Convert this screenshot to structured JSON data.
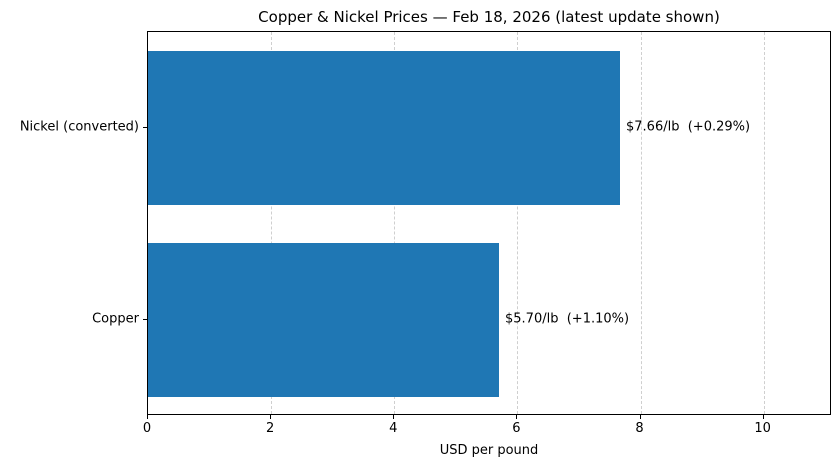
{
  "chart_data": {
    "type": "bar",
    "orientation": "horizontal",
    "title": "Copper & Nickel Prices — Feb 18, 2026 (latest update shown)",
    "categories": [
      "Nickel (converted)",
      "Copper"
    ],
    "values": [
      7.66,
      5.7
    ],
    "bar_labels": [
      "$7.66/lb  (+0.29%)",
      "$5.70/lb  (+1.10%)"
    ],
    "changes": [
      "+0.29%",
      "+1.10%"
    ],
    "xlabel": "USD per pound",
    "xlim": [
      0,
      11.11
    ],
    "xticks": [
      0,
      2,
      4,
      6,
      8,
      10
    ],
    "bar_color": "#1f77b4",
    "grid": "vertical-dashed",
    "grid_color": "#cfcfcf",
    "legend": "none"
  }
}
